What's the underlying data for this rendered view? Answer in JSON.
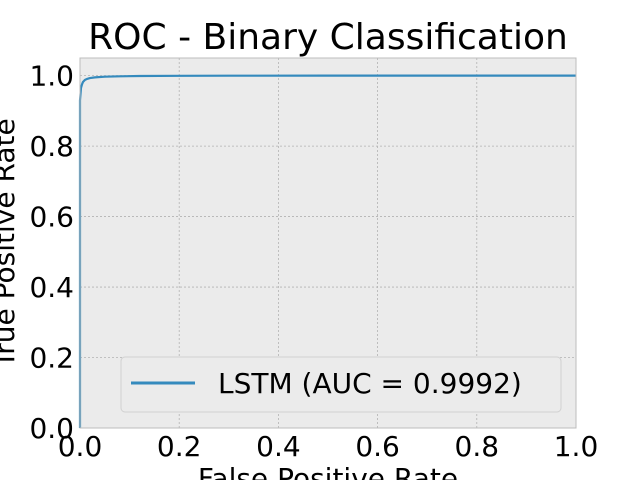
{
  "chart_data": {
    "type": "line",
    "title": "ROC - Binary Classification",
    "xlabel": "False Positive Rate",
    "ylabel": "True Positive Rate",
    "xlim": [
      0.0,
      1.0
    ],
    "ylim": [
      0.0,
      1.05
    ],
    "xticks": [
      "0.0",
      "0.2",
      "0.4",
      "0.6",
      "0.8",
      "1.0"
    ],
    "yticks": [
      "0.0",
      "0.2",
      "0.4",
      "0.6",
      "0.8",
      "1.0"
    ],
    "grid": true,
    "legend_position": "lower-right",
    "series": [
      {
        "name": "LSTM (AUC = 0.9992)",
        "color": "#348abd",
        "x": [
          0.0,
          0.0,
          0.002,
          0.004,
          0.006,
          0.01,
          0.015,
          0.02,
          0.03,
          0.05,
          0.08,
          0.12,
          0.2,
          0.3,
          0.5,
          0.7,
          1.0
        ],
        "y": [
          0.0,
          0.93,
          0.965,
          0.975,
          0.982,
          0.988,
          0.991,
          0.993,
          0.995,
          0.997,
          0.998,
          0.999,
          0.9995,
          0.9998,
          1.0,
          1.0,
          1.0
        ]
      }
    ]
  }
}
